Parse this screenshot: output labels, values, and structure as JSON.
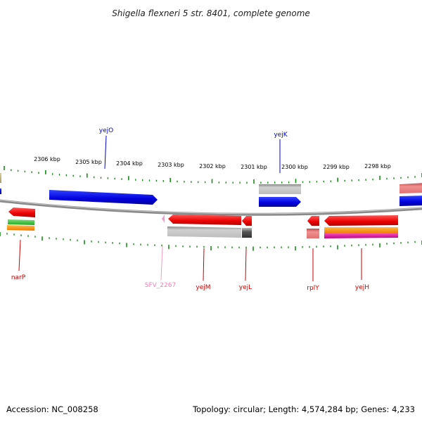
{
  "title": "Shigella flexneri 5 str. 8401, complete genome",
  "footer": {
    "accession": "Accession: NC_008258",
    "summary": "Topology: circular; Length: 4,574,284 bp; Genes: 4,233"
  },
  "colors": {
    "plus_strand": "#0000ee",
    "minus_strand": "#ee0000",
    "tick": "#1a8a1a",
    "backbone": "#808080"
  },
  "tick_labels": [
    "2306 kbp",
    "2305 kbp",
    "2304 kbp",
    "2303 kbp",
    "2302 kbp",
    "2301 kbp",
    "2300 kbp",
    "2299 kbp",
    "2298 kbp"
  ],
  "gene_labels": [
    "yejO",
    "yejK",
    "narP",
    "SFV_2267",
    "yejM",
    "yejL",
    "rplY",
    "yejH"
  ]
}
